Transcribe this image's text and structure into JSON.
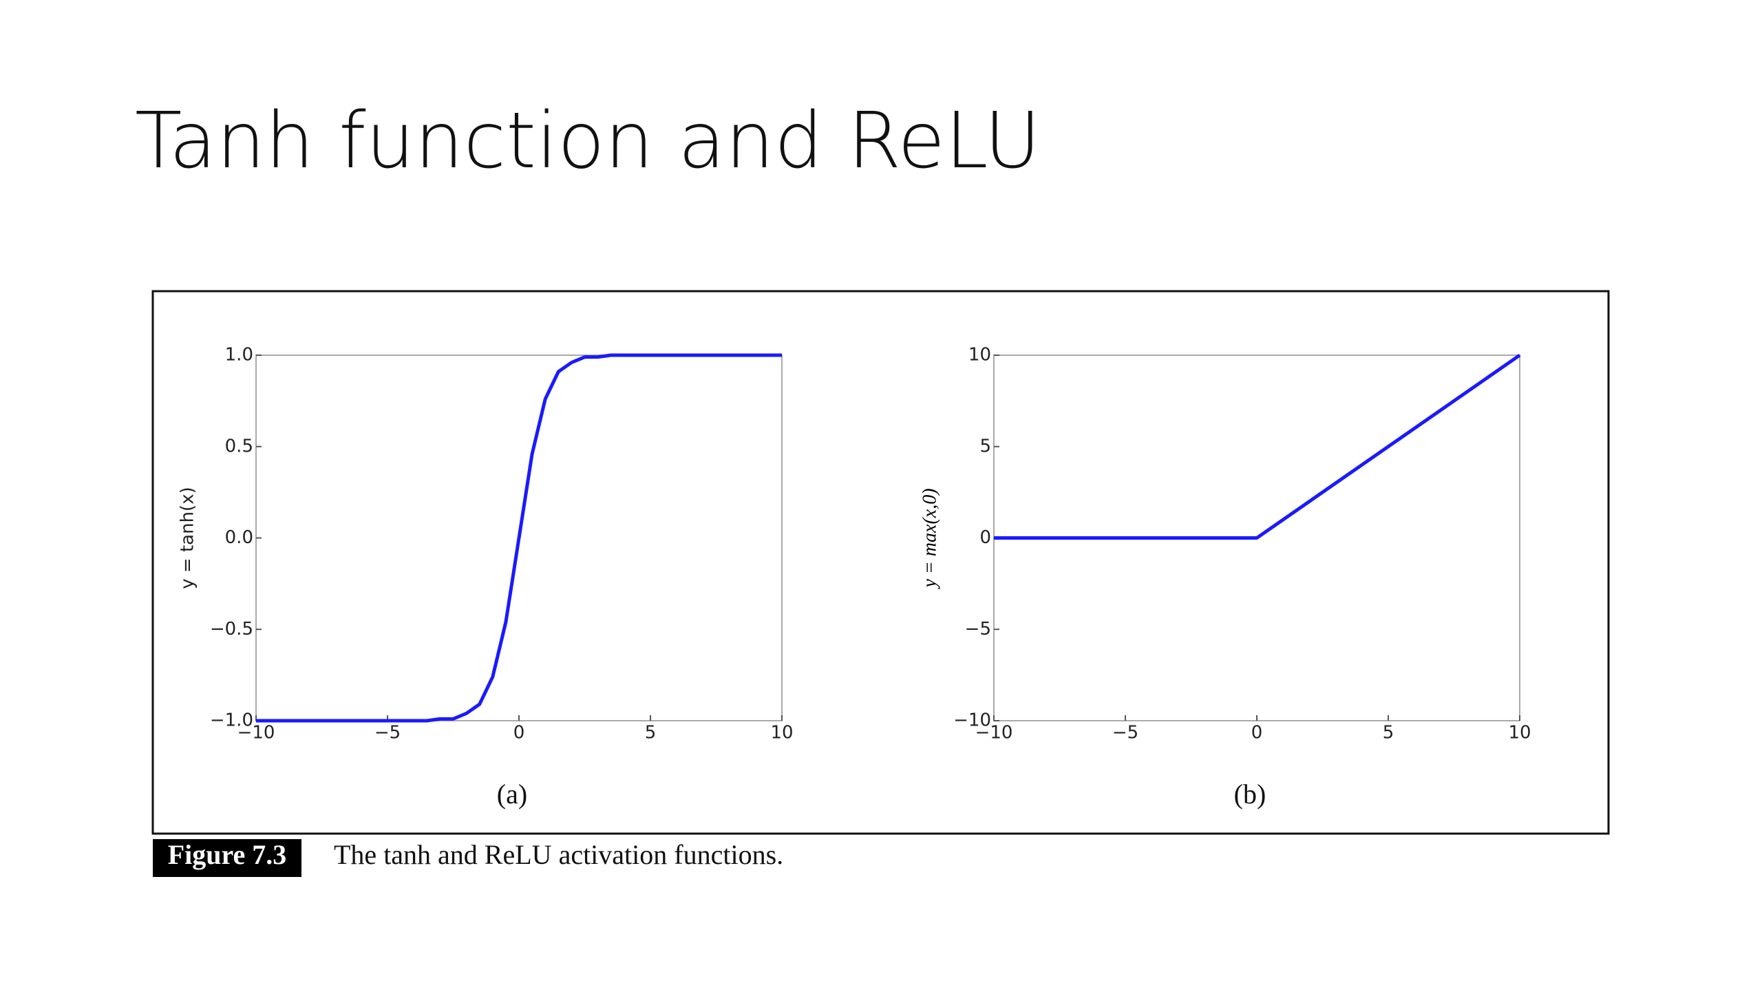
{
  "title": "Tanh function and ReLU",
  "chart_data": [
    {
      "type": "line",
      "panel_label": "(a)",
      "y_label": "y = tanh(x)",
      "x": [
        -10,
        -4,
        -3.5,
        -3,
        -2.5,
        -2,
        -1.5,
        -1,
        -0.5,
        0,
        0.5,
        1,
        1.5,
        2,
        2.5,
        3,
        3.5,
        4,
        10
      ],
      "values": [
        -1.0,
        -1.0,
        -1.0,
        -0.99,
        -0.99,
        -0.96,
        -0.91,
        -0.76,
        -0.46,
        0,
        0.46,
        0.76,
        0.91,
        0.96,
        0.99,
        0.99,
        1.0,
        1.0,
        1.0
      ],
      "color": "#1a1aff",
      "xlim": [
        -10,
        10
      ],
      "ylim": [
        -1,
        1
      ],
      "xticks": [
        {
          "value": -10,
          "label": "−10"
        },
        {
          "value": -5,
          "label": "−5"
        },
        0,
        5,
        10
      ],
      "yticks": [
        {
          "value": -1,
          "label": "−1.0"
        },
        {
          "value": -0.5,
          "label": "−0.5"
        },
        {
          "value": 0,
          "label": "0.0"
        },
        0.5,
        {
          "value": 1,
          "label": "1.0"
        }
      ]
    },
    {
      "type": "line",
      "panel_label": "(b)",
      "y_label": "y = max(x,0)",
      "x": [
        -10,
        0,
        10
      ],
      "values": [
        0,
        0,
        10
      ],
      "color": "#1a1aff",
      "xlim": [
        -10,
        10
      ],
      "ylim": [
        -10,
        10
      ],
      "xticks": [
        {
          "value": -10,
          "label": "−10"
        },
        {
          "value": -5,
          "label": "−5"
        },
        0,
        5,
        10
      ],
      "yticks": [
        {
          "value": -10,
          "label": "−10"
        },
        {
          "value": -5,
          "label": "−5"
        },
        0,
        5,
        10
      ]
    }
  ],
  "caption": {
    "label": "Figure 7.3",
    "text": "The tanh and ReLU activation functions."
  }
}
